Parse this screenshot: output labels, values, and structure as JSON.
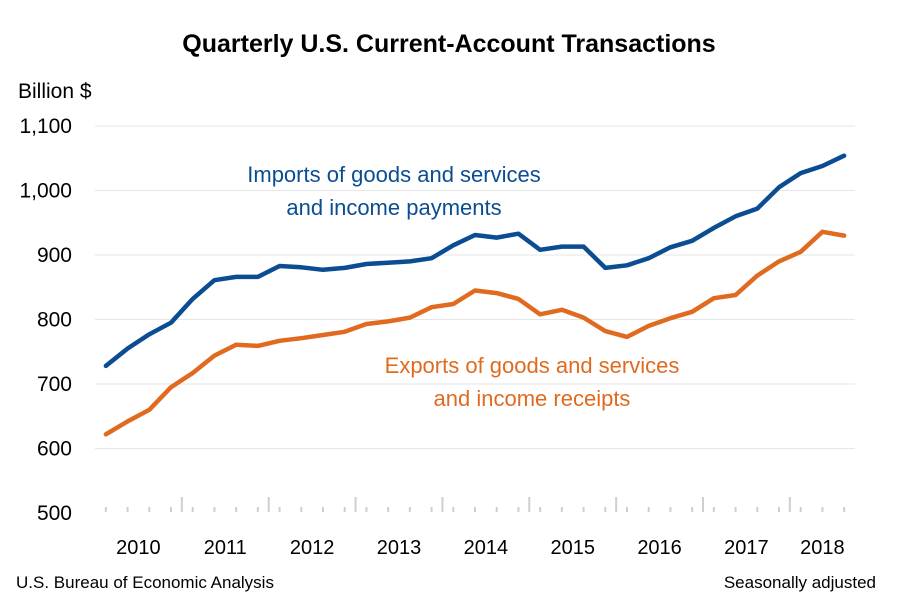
{
  "chart_data": {
    "type": "line",
    "title": "Quarterly U.S. Current-Account Transactions",
    "ylabel": "Billion $",
    "ylim": [
      500,
      1100
    ],
    "yticks": [
      "500",
      "600",
      "700",
      "800",
      "900",
      "1,000",
      "1,100"
    ],
    "ytick_values": [
      500,
      600,
      700,
      800,
      900,
      1000,
      1100
    ],
    "x_start_year": 2010,
    "x_quarters": 35,
    "year_labels": [
      "2010",
      "2011",
      "2012",
      "2013",
      "2014",
      "2015",
      "2016",
      "2017",
      "2018"
    ],
    "grid": true,
    "series": [
      {
        "name": "Imports of goods and services and income payments",
        "label_lines": [
          "Imports of goods and services",
          "and income payments"
        ],
        "color": "#0b4d92",
        "values": [
          728,
          755,
          777,
          795,
          832,
          861,
          866,
          866,
          883,
          881,
          877,
          880,
          886,
          888,
          890,
          895,
          915,
          931,
          927,
          933,
          908,
          913,
          913,
          880,
          884,
          895,
          912,
          922,
          942,
          960,
          972,
          1005,
          1027,
          1038,
          1054
        ]
      },
      {
        "name": "Exports of goods and services and income receipts",
        "label_lines": [
          "Exports of goods and services",
          "and income receipts"
        ],
        "color": "#e06b20",
        "values": [
          622,
          642,
          660,
          695,
          717,
          744,
          761,
          759,
          767,
          771,
          776,
          781,
          793,
          797,
          803,
          819,
          824,
          845,
          841,
          832,
          808,
          815,
          803,
          782,
          773,
          790,
          802,
          812,
          833,
          838,
          868,
          890,
          905,
          936,
          930
        ]
      }
    ]
  },
  "footer": {
    "source": "U.S. Bureau of Economic Analysis",
    "note": "Seasonally adjusted"
  }
}
